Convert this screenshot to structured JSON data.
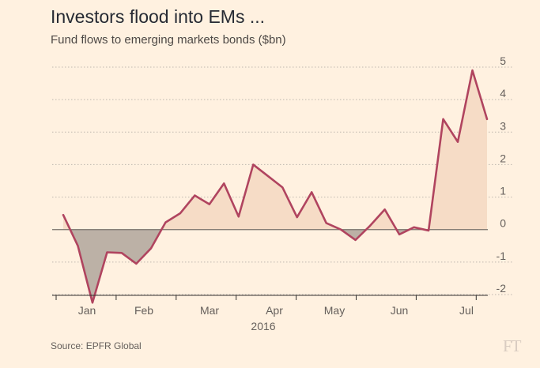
{
  "header": {
    "title": "Investors flood into EMs ...",
    "subtitle": "Fund flows to emerging markets bonds ($bn)"
  },
  "footer": {
    "source": "Source: EPFR Global",
    "logo_text": "FT"
  },
  "colors": {
    "background": "#FFF1E0",
    "line": "#B0445F",
    "positive_fill": "#F6DCC6",
    "negative_fill": "#BCB1A6",
    "gridline": "#BFB7AE",
    "zero_line": "#77706A"
  },
  "chart_data": {
    "type": "area",
    "title": "Investors flood into EMs ...",
    "subtitle": "Fund flows to emerging markets bonds ($bn)",
    "xlabel": "2016",
    "ylabel": "",
    "ylim": [
      -2,
      5
    ],
    "yticks": [
      "5",
      "4",
      "3",
      "2",
      "1",
      "0",
      "-1",
      "-2"
    ],
    "ytick_values": [
      5,
      4,
      3,
      2,
      1,
      0,
      -1,
      -2
    ],
    "grid": true,
    "months": [
      "Jan",
      "Feb",
      "Mar",
      "Apr",
      "May",
      "Jun",
      "Jul"
    ],
    "year_label": "2016",
    "series": [
      {
        "values": [
          0.45,
          -0.5,
          -2.25,
          -0.7,
          -0.72,
          -1.05,
          -0.58,
          0.22,
          0.5,
          1.05,
          0.78,
          1.42,
          0.4,
          2.0,
          1.65,
          1.3,
          0.38,
          1.15,
          0.2,
          0.0,
          -0.32,
          0.12,
          0.62,
          -0.15,
          0.07,
          -0.03,
          3.4,
          2.7,
          4.9,
          3.4
        ]
      }
    ]
  }
}
